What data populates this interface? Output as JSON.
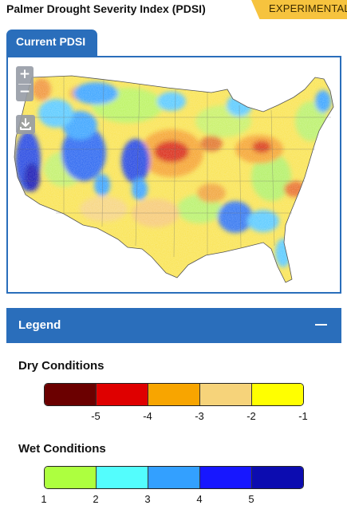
{
  "header": {
    "title": "Palmer Drought Severity Index (PDSI)",
    "badge": "EXPERIMENTAL",
    "badge_color": "#f6c33e"
  },
  "tab": {
    "label": "Current PDSI",
    "color": "#2a6ebb"
  },
  "map": {
    "controls": {
      "zoom_in": "+",
      "zoom_out": "−",
      "download_icon": "download-icon"
    }
  },
  "legend": {
    "title": "Legend",
    "collapse_icon": "minus-icon",
    "dry": {
      "title": "Dry Conditions",
      "colors": [
        "#6b0000",
        "#df0000",
        "#f8a500",
        "#f6d37a",
        "#ffff00"
      ],
      "ticks": [
        "-5",
        "-4",
        "-3",
        "-2",
        "-1"
      ]
    },
    "wet": {
      "title": "Wet Conditions",
      "colors": [
        "#adff3f",
        "#53fdfd",
        "#33a0ff",
        "#1717ff",
        "#0c0cb0"
      ],
      "ticks": [
        "1",
        "2",
        "3",
        "4",
        "5"
      ]
    }
  }
}
